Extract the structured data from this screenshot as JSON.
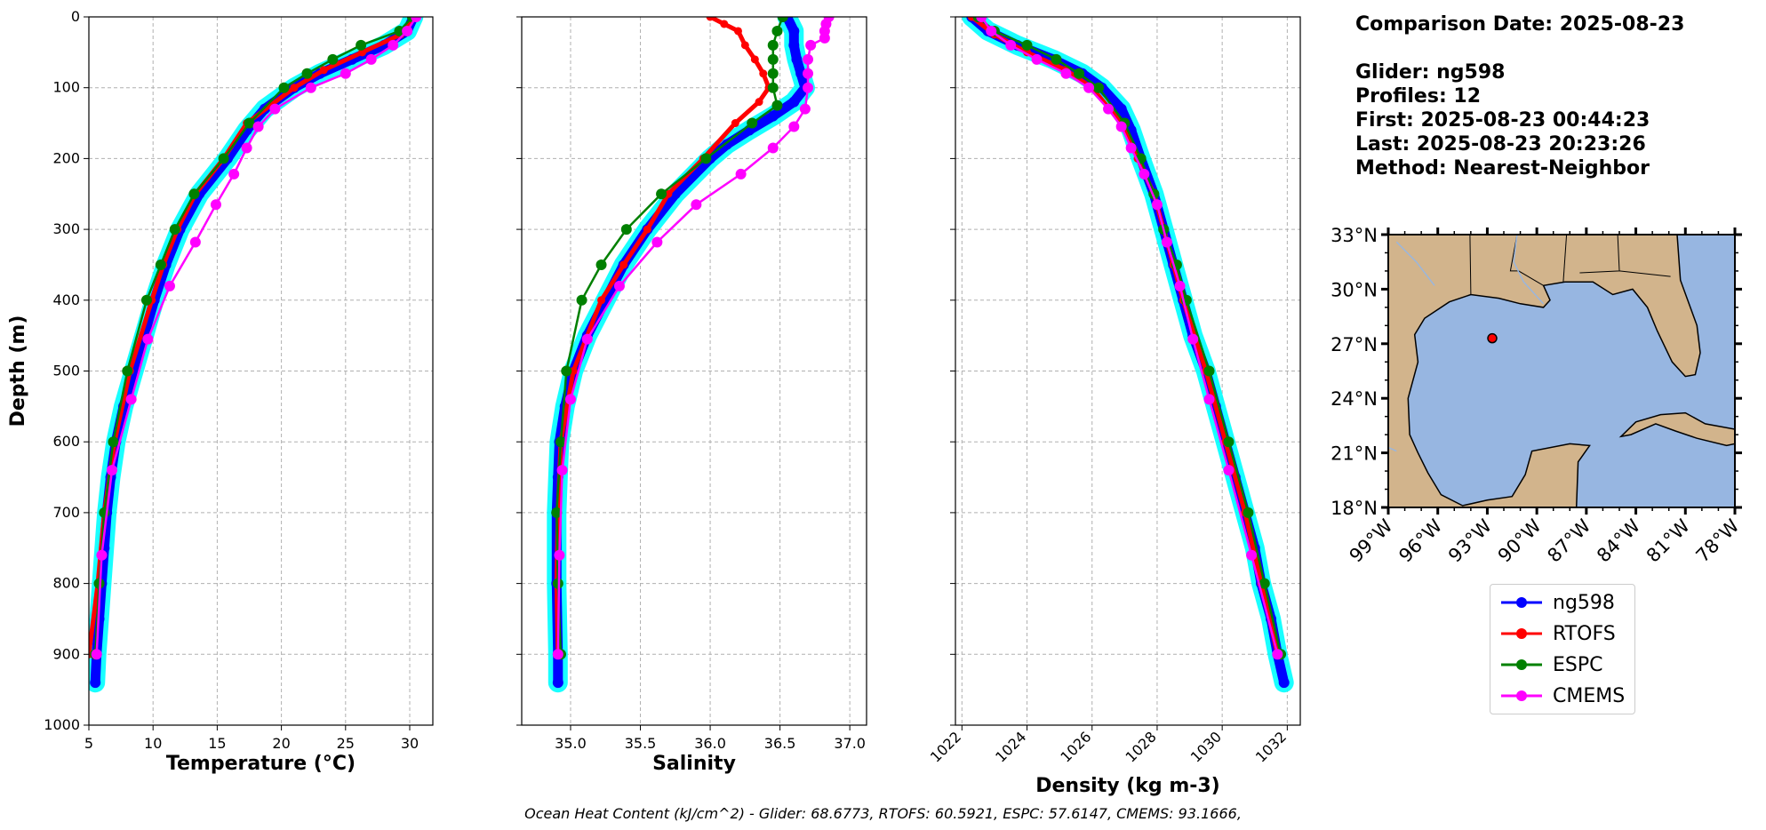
{
  "info": {
    "comparison_date": "Comparison Date: 2025-08-23",
    "glider": "Glider: ng598",
    "profiles": "Profiles: 12",
    "first": "First: 2025-08-23 00:44:23",
    "last": "Last: 2025-08-23 20:23:26",
    "method": "Method: Nearest-Neighbor"
  },
  "footer": "Ocean Heat Content (kJ/cm^2) - Glider: 68.6773,  RTOFS: 60.5921,  ESPC: 57.6147,  CMEMS: 93.1666,",
  "legend": [
    {
      "name": "ng598",
      "color": "#0000ff"
    },
    {
      "name": "RTOFS",
      "color": "#ff0000"
    },
    {
      "name": "ESPC",
      "color": "#008000"
    },
    {
      "name": "CMEMS",
      "color": "#ff00ff"
    }
  ],
  "map": {
    "lat_labels": [
      "18°N",
      "21°N",
      "24°N",
      "27°N",
      "30°N",
      "33°N"
    ],
    "lon_labels": [
      "99°W",
      "96°W",
      "93°W",
      "90°W",
      "87°W",
      "84°W",
      "81°W",
      "78°W"
    ],
    "glider_location": {
      "lon": -92.7,
      "lat": 27.3
    },
    "land_color": "#d2b48c",
    "water_color": "#97b6e1"
  },
  "chart_data": [
    {
      "type": "line",
      "xlabel": "Temperature (°C)",
      "ylabel": "Depth (m)",
      "xlim": [
        5,
        31.8
      ],
      "ylim": [
        1000,
        0
      ],
      "xticks": [
        "5",
        "10",
        "15",
        "20",
        "25",
        "30"
      ],
      "yticks": [
        "0",
        "100",
        "200",
        "300",
        "400",
        "500",
        "600",
        "700",
        "800",
        "900",
        "1000"
      ],
      "grid": true,
      "series": [
        {
          "name": "ng598",
          "color": "#0000ff",
          "depth": [
            0,
            20,
            40,
            60,
            80,
            100,
            130,
            160,
            200,
            250,
            300,
            350,
            400,
            450,
            500,
            550,
            600,
            650,
            700,
            750,
            800,
            850,
            900,
            940
          ],
          "values": [
            30.3,
            29.8,
            28.0,
            25.5,
            23.0,
            21.0,
            18.7,
            17.3,
            15.8,
            13.6,
            12.1,
            11.0,
            10.1,
            9.3,
            8.5,
            7.7,
            7.1,
            6.7,
            6.4,
            6.2,
            6.0,
            5.8,
            5.6,
            5.5
          ]
        },
        {
          "name": "RTOFS",
          "color": "#ff0000",
          "depth": [
            0,
            25,
            50,
            75,
            100,
            150,
            200,
            250,
            300,
            350,
            400,
            500,
            600,
            700,
            800,
            900
          ],
          "values": [
            30.3,
            29.3,
            26.3,
            23.3,
            21.0,
            17.3,
            15.5,
            13.3,
            11.9,
            10.8,
            9.9,
            8.2,
            7.0,
            6.2,
            5.7,
            5.0
          ]
        },
        {
          "name": "ESPC",
          "color": "#008000",
          "depth": [
            0,
            20,
            40,
            60,
            80,
            100,
            150,
            200,
            250,
            300,
            350,
            400,
            500,
            600,
            700,
            800,
            900
          ],
          "values": [
            30.2,
            29.2,
            26.2,
            24.0,
            22.0,
            20.2,
            17.5,
            15.5,
            13.2,
            11.7,
            10.6,
            9.5,
            8.0,
            6.9,
            6.2,
            5.8,
            5.5
          ]
        },
        {
          "name": "CMEMS",
          "color": "#ff00ff",
          "depth": [
            0,
            20,
            40,
            60,
            80,
            100,
            130,
            155,
            185,
            222,
            265,
            318,
            380,
            455,
            540,
            640,
            760,
            900
          ],
          "values": [
            30.5,
            29.8,
            28.7,
            27.0,
            25.0,
            22.3,
            19.5,
            18.2,
            17.3,
            16.3,
            14.9,
            13.3,
            11.3,
            9.6,
            8.3,
            6.8,
            6.0,
            5.6
          ]
        }
      ]
    },
    {
      "type": "line",
      "xlabel": "Salinity",
      "xlim": [
        34.65,
        37.12
      ],
      "ylim": [
        1000,
        0
      ],
      "xticks": [
        "35.0",
        "35.5",
        "36.0",
        "36.5",
        "37.0"
      ],
      "grid": true,
      "series": [
        {
          "name": "ng598",
          "color": "#0000ff",
          "depth": [
            0,
            20,
            40,
            60,
            80,
            100,
            120,
            140,
            160,
            180,
            200,
            250,
            300,
            350,
            400,
            450,
            500,
            550,
            600,
            650,
            700,
            800,
            900,
            940
          ],
          "values": [
            36.55,
            36.6,
            36.6,
            36.62,
            36.65,
            36.68,
            36.6,
            36.45,
            36.28,
            36.12,
            36.0,
            35.75,
            35.55,
            35.38,
            35.25,
            35.12,
            35.02,
            34.96,
            34.92,
            34.91,
            34.9,
            34.9,
            34.91,
            34.91
          ]
        },
        {
          "name": "RTOFS",
          "color": "#ff0000",
          "depth": [
            0,
            10,
            20,
            40,
            60,
            80,
            100,
            120,
            150,
            200,
            250,
            300,
            350,
            400,
            500,
            600,
            700,
            800,
            900
          ],
          "values": [
            36.0,
            36.1,
            36.2,
            36.25,
            36.32,
            36.38,
            36.42,
            36.35,
            36.18,
            35.95,
            35.7,
            35.55,
            35.38,
            35.22,
            35.02,
            34.93,
            34.91,
            34.9,
            34.91
          ]
        },
        {
          "name": "ESPC",
          "color": "#008000",
          "depth": [
            0,
            20,
            40,
            60,
            80,
            100,
            125,
            150,
            200,
            250,
            300,
            350,
            400,
            500,
            600,
            700,
            800,
            900
          ],
          "values": [
            36.52,
            36.48,
            36.45,
            36.45,
            36.45,
            36.45,
            36.48,
            36.3,
            35.97,
            35.65,
            35.4,
            35.22,
            35.08,
            34.97,
            34.93,
            34.9,
            34.91,
            34.93
          ]
        },
        {
          "name": "CMEMS",
          "color": "#ff00ff",
          "depth": [
            0,
            10,
            20,
            30,
            40,
            60,
            80,
            100,
            130,
            155,
            185,
            222,
            265,
            318,
            380,
            455,
            540,
            640,
            760,
            900
          ],
          "values": [
            36.85,
            36.83,
            36.82,
            36.82,
            36.72,
            36.7,
            36.7,
            36.7,
            36.68,
            36.6,
            36.45,
            36.22,
            35.9,
            35.62,
            35.35,
            35.12,
            35.0,
            34.94,
            34.92,
            34.91
          ]
        }
      ]
    },
    {
      "type": "line",
      "xlabel": "Density (kg m-3)",
      "xlim": [
        1021.8,
        1032.4
      ],
      "ylim": [
        1000,
        0
      ],
      "xticks": [
        "1022",
        "1024",
        "1026",
        "1028",
        "1030",
        "1032"
      ],
      "grid": true,
      "series": [
        {
          "name": "ng598",
          "color": "#0000ff",
          "depth": [
            0,
            20,
            40,
            60,
            80,
            100,
            130,
            160,
            200,
            250,
            300,
            350,
            400,
            450,
            500,
            550,
            600,
            650,
            700,
            750,
            800,
            850,
            900,
            940
          ],
          "values": [
            1022.3,
            1022.8,
            1023.7,
            1024.8,
            1025.7,
            1026.3,
            1026.9,
            1027.2,
            1027.5,
            1027.9,
            1028.2,
            1028.5,
            1028.8,
            1029.1,
            1029.5,
            1029.8,
            1030.1,
            1030.4,
            1030.7,
            1031.0,
            1031.2,
            1031.5,
            1031.7,
            1031.9
          ]
        },
        {
          "name": "RTOFS",
          "color": "#ff0000",
          "depth": [
            0,
            25,
            50,
            75,
            100,
            150,
            200,
            250,
            300,
            350,
            400,
            500,
            600,
            700,
            800,
            900
          ],
          "values": [
            1022.3,
            1023.0,
            1024.0,
            1025.2,
            1026.0,
            1026.9,
            1027.4,
            1027.9,
            1028.2,
            1028.5,
            1028.8,
            1029.5,
            1030.1,
            1030.7,
            1031.2,
            1031.7
          ]
        },
        {
          "name": "ESPC",
          "color": "#008000",
          "depth": [
            0,
            20,
            40,
            60,
            80,
            100,
            150,
            200,
            250,
            300,
            350,
            400,
            500,
            600,
            700,
            800,
            900
          ],
          "values": [
            1022.5,
            1023.0,
            1024.0,
            1024.9,
            1025.6,
            1026.2,
            1027.0,
            1027.5,
            1027.9,
            1028.2,
            1028.6,
            1028.9,
            1029.6,
            1030.2,
            1030.8,
            1031.3,
            1031.8
          ]
        },
        {
          "name": "CMEMS",
          "color": "#ff00ff",
          "depth": [
            0,
            20,
            40,
            60,
            80,
            100,
            130,
            155,
            185,
            222,
            265,
            318,
            380,
            455,
            540,
            640,
            760,
            900
          ],
          "values": [
            1022.6,
            1022.9,
            1023.5,
            1024.3,
            1025.2,
            1025.9,
            1026.5,
            1026.9,
            1027.2,
            1027.6,
            1028.0,
            1028.3,
            1028.7,
            1029.1,
            1029.6,
            1030.2,
            1030.9,
            1031.7
          ]
        }
      ]
    }
  ]
}
